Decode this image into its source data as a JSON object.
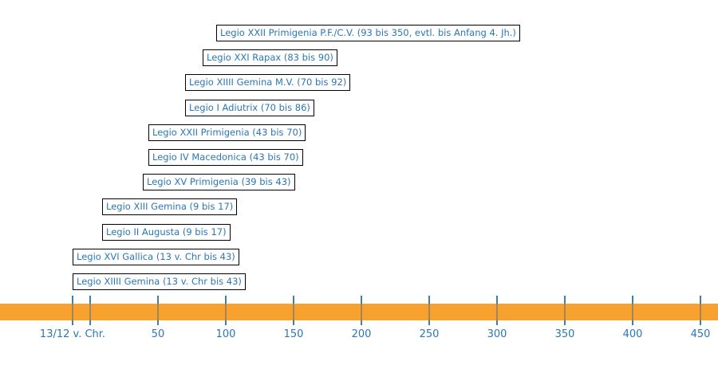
{
  "colors": {
    "timeline_bar": "#f7a22e",
    "tick_line": "#447e9e",
    "text": "#2b77b5",
    "box_border": "#000000",
    "box_background": "#ffffff",
    "page_background": "#ffffff"
  },
  "chart_data": {
    "type": "bar",
    "variant": "gantt-timeline",
    "grid": false,
    "legend": "none",
    "xlim_years": [
      -66,
      463
    ],
    "axis_ticks": [
      {
        "year": -13,
        "label": "13/12 v. Chr."
      },
      {
        "year": 0,
        "label": ""
      },
      {
        "year": 50,
        "label": "50"
      },
      {
        "year": 100,
        "label": "100"
      },
      {
        "year": 150,
        "label": "150"
      },
      {
        "year": 200,
        "label": "200"
      },
      {
        "year": 250,
        "label": "250"
      },
      {
        "year": 300,
        "label": "300"
      },
      {
        "year": 350,
        "label": "350"
      },
      {
        "year": 400,
        "label": "400"
      },
      {
        "year": 450,
        "label": "450"
      }
    ],
    "rows": [
      {
        "label": "Legio XXII Primigenia P.F./C.V. (93 bis 350, evtl. bis Anfang 4. Jh.)",
        "start": 93,
        "end": 350
      },
      {
        "label": "Legio XXI Rapax (83 bis 90)",
        "start": 83,
        "end": 90
      },
      {
        "label": "Legio XIIII Gemina M.V. (70 bis 92)",
        "start": 70,
        "end": 92
      },
      {
        "label": "Legio I Adiutrix (70 bis 86)",
        "start": 70,
        "end": 86
      },
      {
        "label": "Legio XXII Primigenia (43 bis 70)",
        "start": 43,
        "end": 70
      },
      {
        "label": "Legio IV Macedonica (43 bis 70)",
        "start": 43,
        "end": 70
      },
      {
        "label": "Legio XV Primigenia (39 bis 43)",
        "start": 39,
        "end": 43
      },
      {
        "label": "Legio XIII Gemina (9 bis 17)",
        "start": 9,
        "end": 17
      },
      {
        "label": "Legio II Augusta (9 bis 17)",
        "start": 9,
        "end": 17
      },
      {
        "label": "Legio XVI Gallica (13 v. Chr bis 43)",
        "start": -13,
        "end": 43
      },
      {
        "label": "Legio XIIII Gemina (13 v. Chr bis 43)",
        "start": -13,
        "end": 43
      }
    ]
  }
}
